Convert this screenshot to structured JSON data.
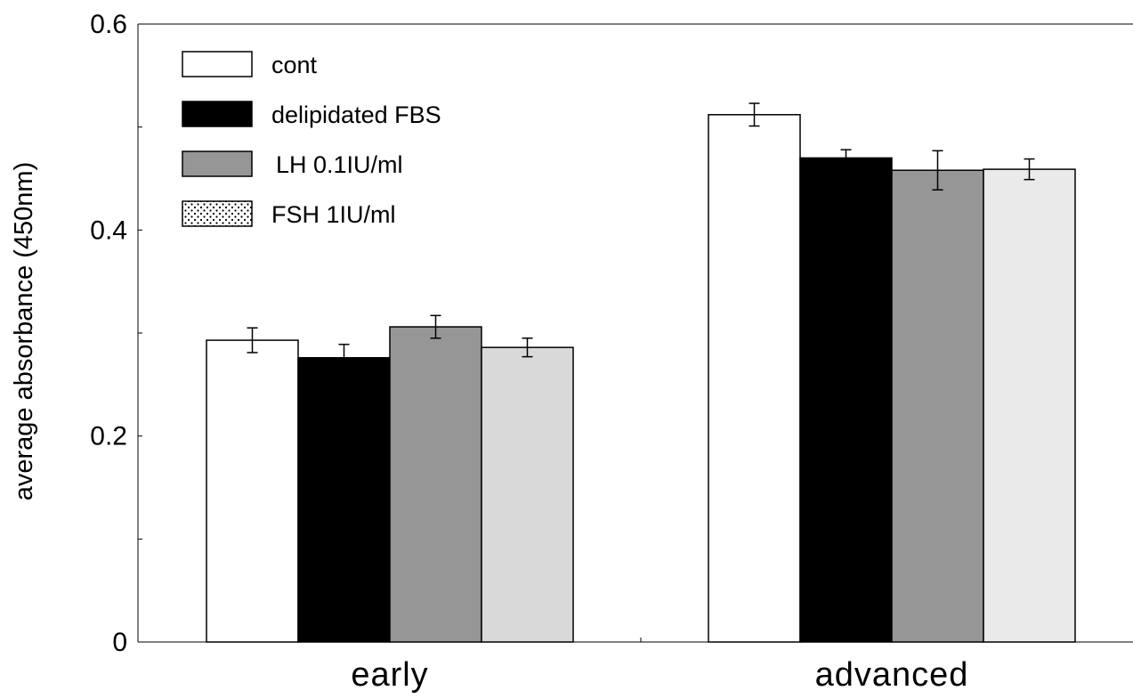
{
  "chart_data": {
    "type": "bar",
    "title": "",
    "xlabel": "",
    "ylabel": "average absorbance (450nm)",
    "categories": [
      "early",
      "advanced"
    ],
    "ylim": [
      0,
      0.6
    ],
    "y_major_ticks": [
      0,
      0.2,
      0.4,
      0.6
    ],
    "y_tick_labels": [
      "0",
      "0.2",
      "0.4",
      "0.6"
    ],
    "grid": false,
    "legend_position": "top-left",
    "series": [
      {
        "name": "cont",
        "values": [
          0.293,
          0.512
        ],
        "errors": [
          0.012,
          0.011
        ],
        "color": "#ffffff",
        "legend_pattern": "solid"
      },
      {
        "name": "delipidated FBS",
        "values": [
          0.276,
          0.47
        ],
        "errors": [
          0.013,
          0.008
        ],
        "color": "#000000",
        "legend_pattern": "solid"
      },
      {
        "name": "LH 0.1IU/ml",
        "values": [
          0.306,
          0.458
        ],
        "errors": [
          0.011,
          0.019
        ],
        "color": "#969696",
        "legend_pattern": "solid"
      },
      {
        "name": "FSH 1IU/ml",
        "values": [
          0.286,
          0.459
        ],
        "errors": [
          0.009,
          0.01
        ],
        "color": "#d9d9d9",
        "color_advanced": "#eaeaea",
        "legend_pattern": "dotted"
      }
    ]
  }
}
